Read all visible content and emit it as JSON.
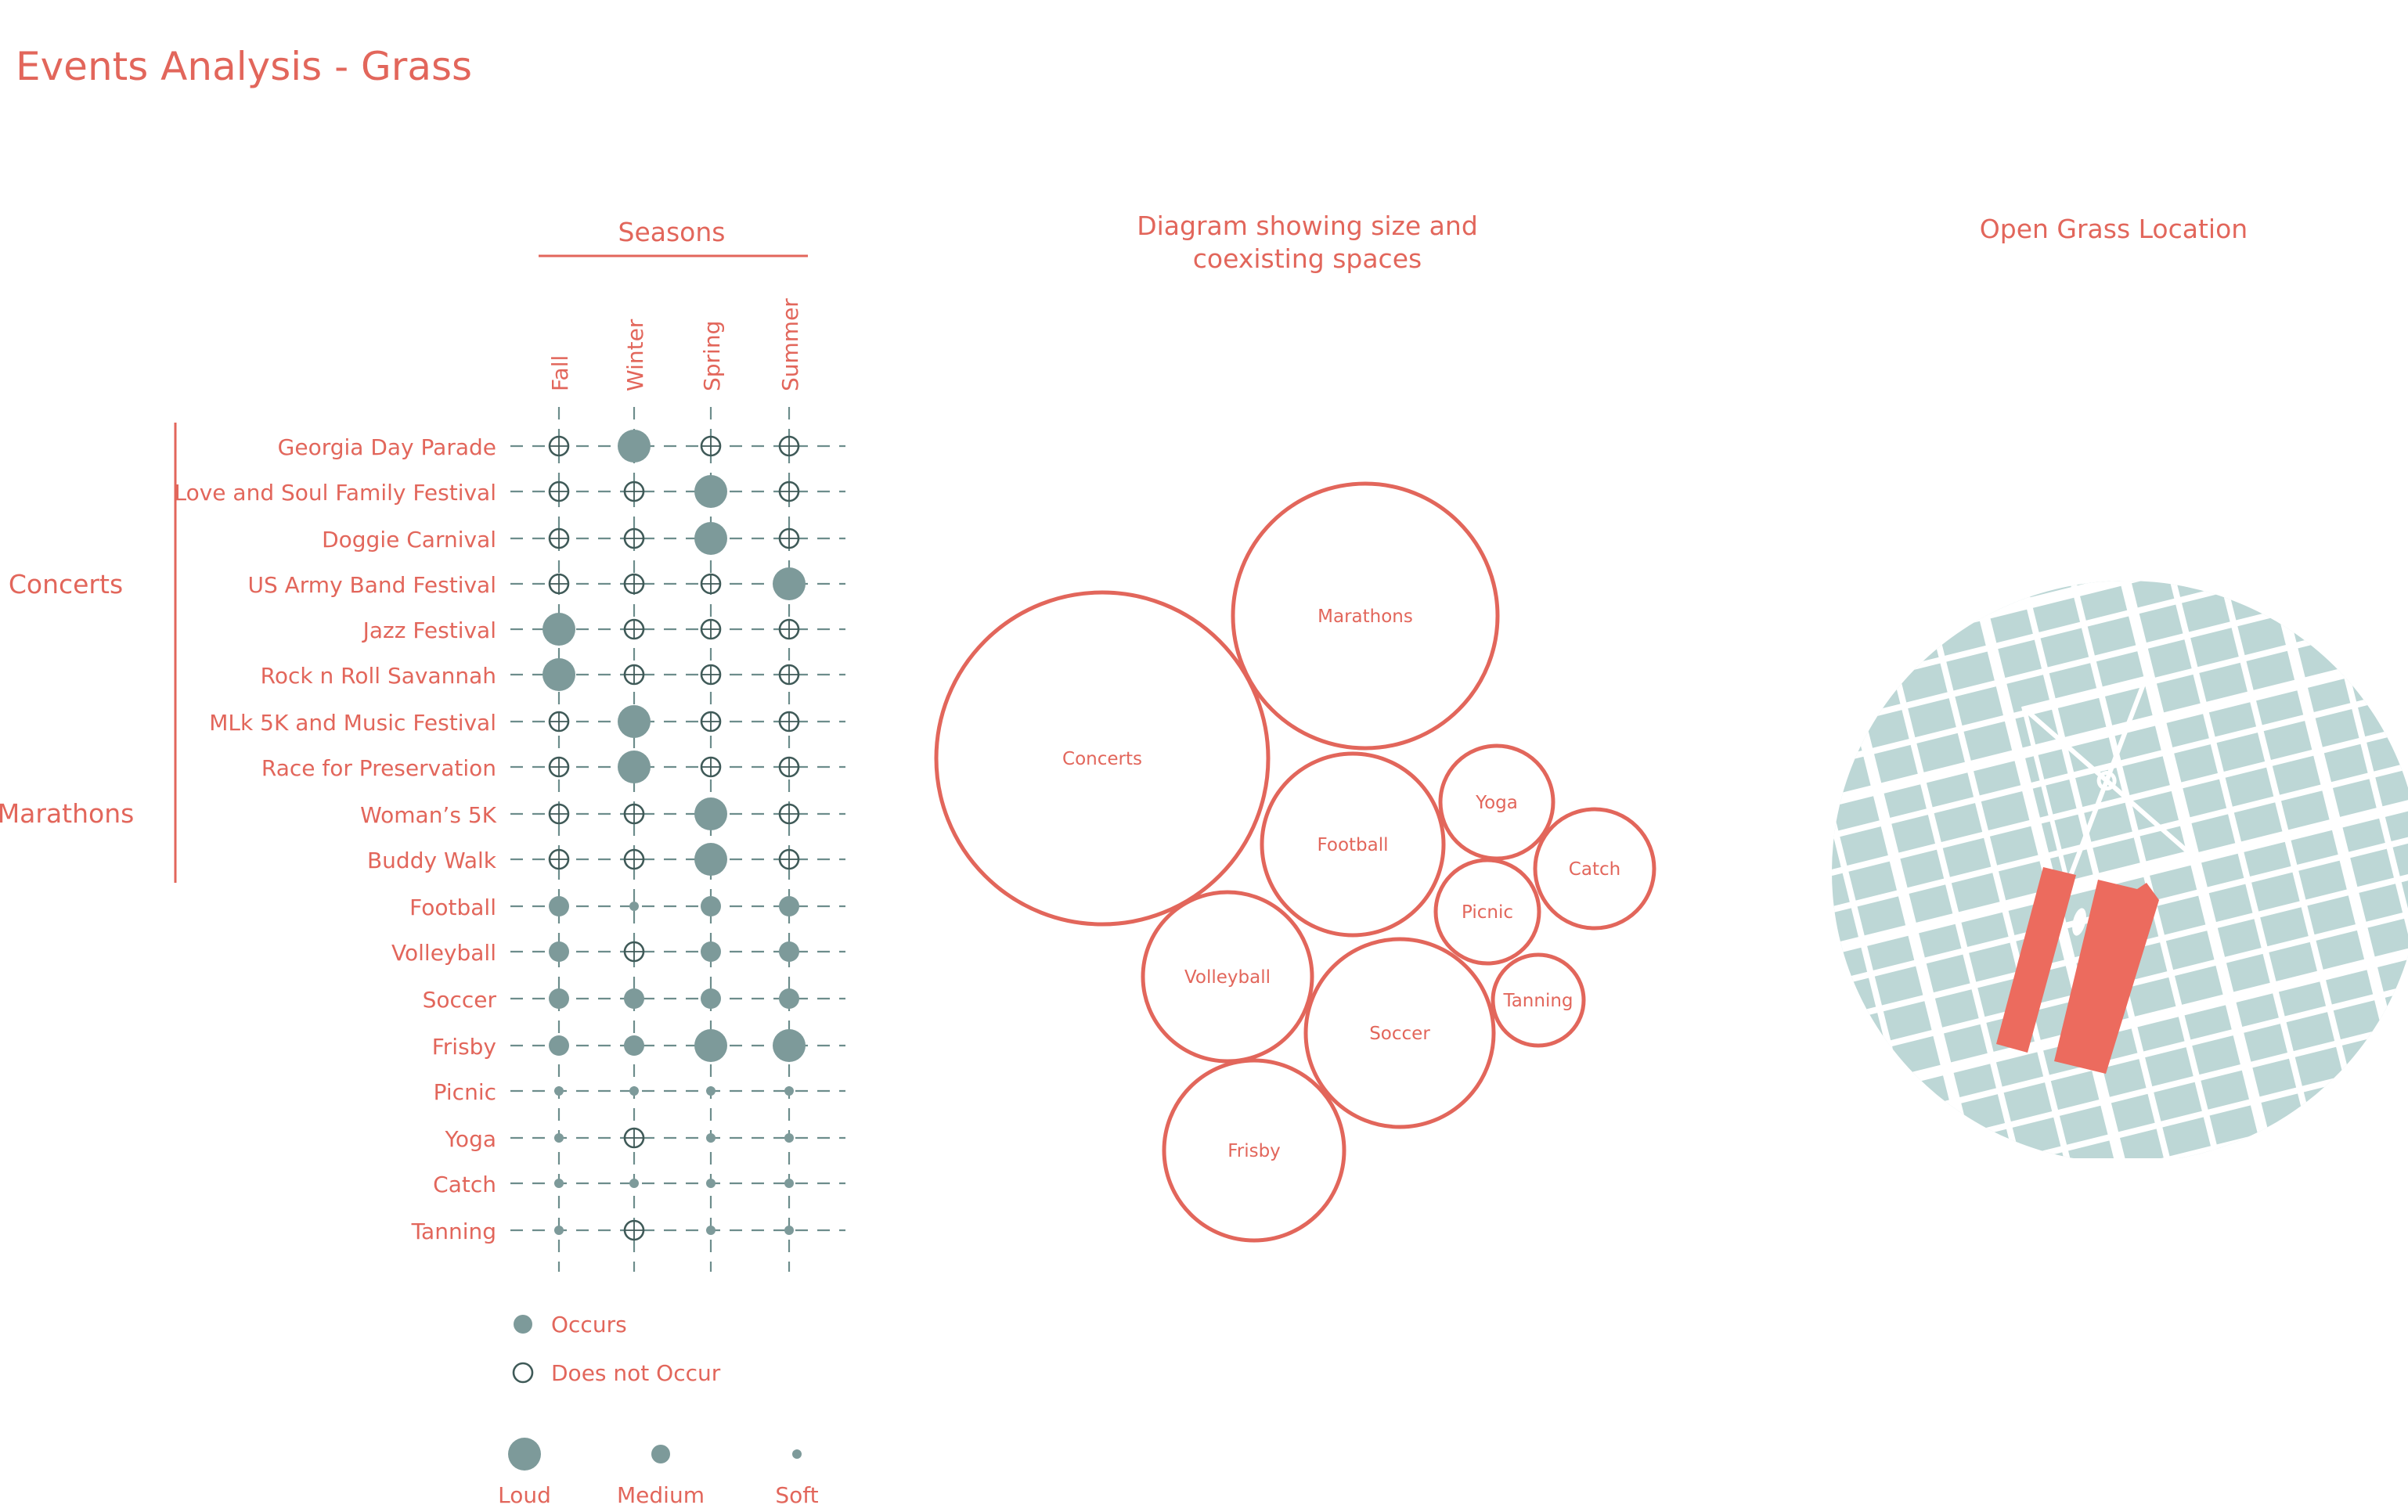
{
  "page": {
    "title": "Events Analysis - Grass",
    "seasons_header": "Seasons",
    "diagram_header_line1": "Diagram showing size and",
    "diagram_header_line2": "coexisting spaces",
    "map_header": "Open Grass Location"
  },
  "colors": {
    "accent": "#e2665b",
    "occurs_fill": "#7d9a9a",
    "grid_line": "#6d8d8c",
    "map_fill": "#bdd7d6",
    "map_highlight": "#ec6b5e",
    "ring_stroke": "#3f5a58"
  },
  "chart_data": {
    "type": "table",
    "columns": [
      "Fall",
      "Winter",
      "Spring",
      "Summer"
    ],
    "groups": [
      {
        "label": "Concerts",
        "rows": [
          0,
          6
        ]
      },
      {
        "label": "Marathons",
        "rows": [
          7,
          9
        ]
      }
    ],
    "rows": [
      {
        "name": "Georgia Day Parade",
        "values": [
          "none",
          "loud",
          "none",
          "none"
        ]
      },
      {
        "name": "Love and Soul Family Festival",
        "values": [
          "none",
          "none",
          "loud",
          "none"
        ]
      },
      {
        "name": "Doggie Carnival",
        "values": [
          "none",
          "none",
          "loud",
          "none"
        ]
      },
      {
        "name": "US Army Band Festival",
        "values": [
          "none",
          "none",
          "none",
          "loud"
        ]
      },
      {
        "name": "Jazz Festival",
        "values": [
          "loud",
          "none",
          "none",
          "none"
        ]
      },
      {
        "name": "Rock n Roll Savannah",
        "values": [
          "loud",
          "none",
          "none",
          "none"
        ]
      },
      {
        "name": "MLk 5K and Music Festival",
        "values": [
          "none",
          "loud",
          "none",
          "none"
        ]
      },
      {
        "name": "Race for Preservation",
        "values": [
          "none",
          "loud",
          "none",
          "none"
        ]
      },
      {
        "name": "Woman’s 5K",
        "values": [
          "none",
          "none",
          "loud",
          "none"
        ]
      },
      {
        "name": "Buddy Walk",
        "values": [
          "none",
          "none",
          "loud",
          "none"
        ]
      },
      {
        "name": "Football",
        "values": [
          "medium",
          "soft",
          "medium",
          "medium"
        ]
      },
      {
        "name": "Volleyball",
        "values": [
          "medium",
          "none",
          "medium",
          "medium"
        ]
      },
      {
        "name": "Soccer",
        "values": [
          "medium",
          "medium",
          "medium",
          "medium"
        ]
      },
      {
        "name": "Frisby",
        "values": [
          "medium",
          "medium",
          "loud",
          "loud"
        ]
      },
      {
        "name": "Picnic",
        "values": [
          "soft",
          "soft",
          "soft",
          "soft"
        ]
      },
      {
        "name": "Yoga",
        "values": [
          "soft",
          "none",
          "soft",
          "soft"
        ]
      },
      {
        "name": "Catch",
        "values": [
          "soft",
          "soft",
          "soft",
          "soft"
        ]
      },
      {
        "name": "Tanning",
        "values": [
          "soft",
          "none",
          "soft",
          "soft"
        ]
      }
    ],
    "legend": {
      "occurs": "Occurs",
      "not_occur": "Does not Occur",
      "loud": "Loud",
      "medium": "Medium",
      "soft": "Soft"
    },
    "bubbles": [
      {
        "label": "Concerts"
      },
      {
        "label": "Marathons"
      },
      {
        "label": "Football"
      },
      {
        "label": "Yoga"
      },
      {
        "label": "Catch"
      },
      {
        "label": "Picnic"
      },
      {
        "label": "Tanning"
      },
      {
        "label": "Volleyball"
      },
      {
        "label": "Soccer"
      },
      {
        "label": "Frisby"
      }
    ]
  }
}
